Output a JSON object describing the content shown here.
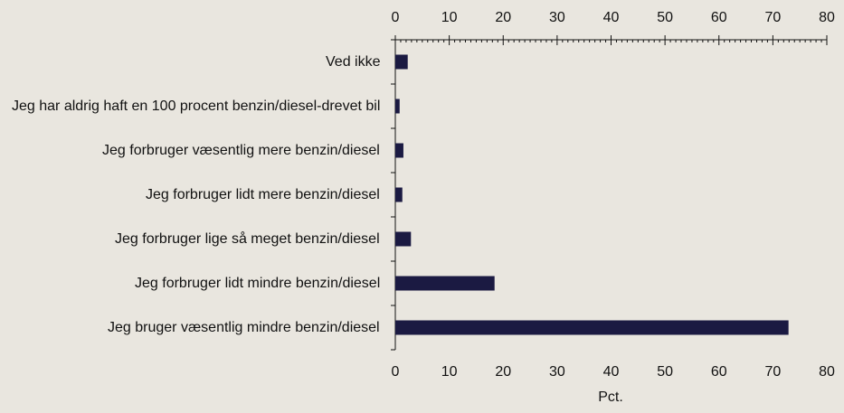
{
  "chart_data": {
    "type": "bar",
    "orientation": "horizontal",
    "categories": [
      "Ved ikke",
      "Jeg har aldrig haft en 100 procent benzin/diesel-drevet bil",
      "Jeg forbruger væsentlig mere benzin/diesel",
      "Jeg forbruger lidt mere benzin/diesel",
      "Jeg forbruger lige så meget benzin/diesel",
      "Jeg forbruger lidt mindre benzin/diesel",
      "Jeg bruger væsentlig mindre benzin/diesel"
    ],
    "values": [
      2.3,
      0.8,
      1.5,
      1.3,
      2.9,
      18.4,
      72.9
    ],
    "color": "#1b1a42",
    "xlabel": "Pct.",
    "xlim": [
      0,
      80
    ],
    "xticks": [
      0,
      10,
      20,
      30,
      40,
      50,
      60,
      70,
      80
    ]
  }
}
